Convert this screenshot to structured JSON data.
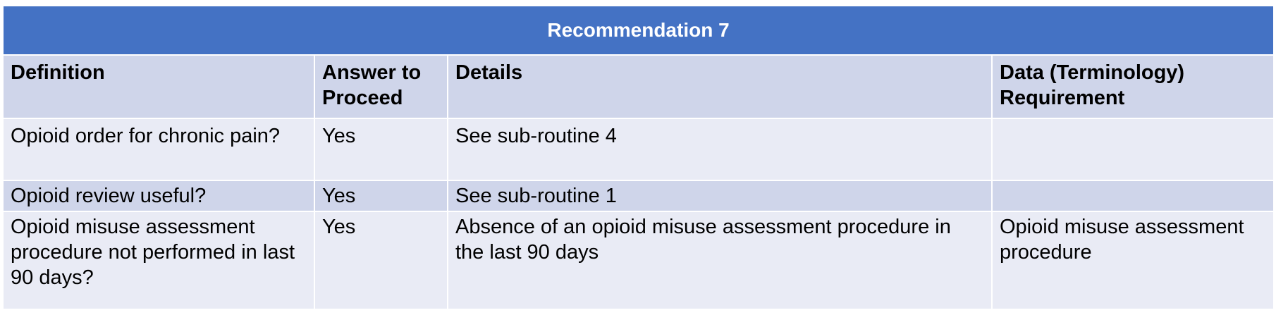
{
  "table": {
    "title": "Recommendation 7",
    "headers": {
      "definition": "Definition",
      "answer_line1": "Answer to",
      "answer_line2": "Proceed",
      "details": "Details",
      "data_line1": "Data (Terminology)",
      "data_line2": "Requirement"
    },
    "rows": [
      {
        "definition": "Opioid order for chronic pain?",
        "answer": "Yes",
        "details": "See sub-routine 4",
        "data": ""
      },
      {
        "definition": "Opioid review useful?",
        "answer": "Yes",
        "details": "See sub-routine 1",
        "data": ""
      },
      {
        "definition": "Opioid misuse assessment procedure not performed in last 90 days?",
        "answer": "Yes",
        "details": "Absence of an opioid misuse assessment procedure in the last 90 days",
        "data": "Opioid misuse assessment procedure"
      }
    ]
  },
  "colors": {
    "title_background": "#4472c4",
    "header_background": "#cfd5ea",
    "row_light": "#e9ebf5",
    "row_dark": "#cfd5ea"
  }
}
